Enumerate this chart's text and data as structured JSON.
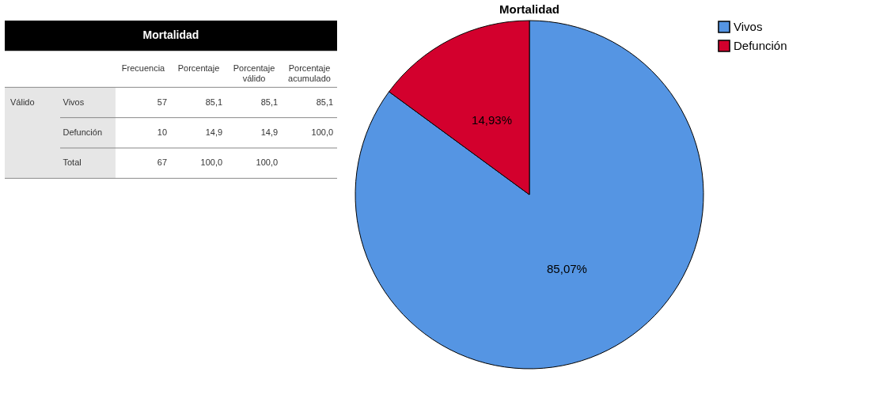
{
  "chart_data": [
    {
      "type": "other",
      "title": "Mortalidad",
      "annotations": [
        "Válido"
      ],
      "categories": [
        "Frecuencia",
        "Porcentaje",
        "Porcentaje válido",
        "Porcentaje acumulado"
      ],
      "y_categories": [
        "Vivos",
        "Defunción",
        "Total"
      ],
      "cells": [
        [
          "57",
          "85,1",
          "85,1",
          "85,1"
        ],
        [
          "10",
          "14,9",
          "14,9",
          "100,0"
        ],
        [
          "67",
          "100,0",
          "100,0",
          null
        ]
      ]
    },
    {
      "type": "pie",
      "title": "Mortalidad",
      "categories": [
        "Vivos",
        "Defunción"
      ],
      "values": [
        85.07,
        14.93
      ],
      "colors": [
        "#5595e3",
        "#d3002d"
      ],
      "value_labels": [
        "85,07%",
        "14,93%"
      ],
      "legend": "top right"
    }
  ]
}
